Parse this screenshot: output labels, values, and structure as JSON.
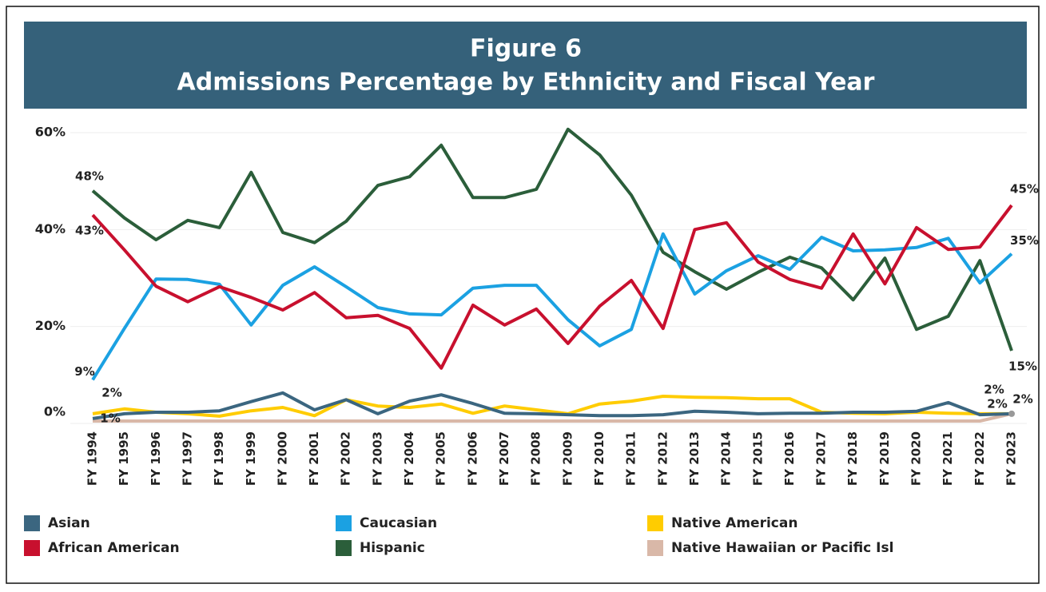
{
  "chart_data": {
    "type": "line",
    "title": "Figure 6",
    "subtitle": "Admissions Percentage by Ethnicity and Fiscal Year",
    "categories": [
      "FY 1994",
      "FY 1995",
      "FY 1996",
      "FY 1997",
      "FY 1998",
      "FY 1999",
      "FY 2000",
      "FY 2001",
      "FY 2002",
      "FY 2003",
      "FY 2004",
      "FY 2005",
      "FY 2006",
      "FY 2007",
      "FY 2008",
      "FY 2009",
      "FY 2010",
      "FY 2011",
      "FY 2012",
      "FY 2013",
      "FY 2014",
      "FY 2015",
      "FY 2016",
      "FY 2017",
      "FY 2018",
      "FY 2019",
      "FY 2020",
      "FY 2021",
      "FY 2022",
      "FY 2023"
    ],
    "ylim": [
      0,
      60
    ],
    "yticks": [
      {
        "value": 0,
        "label": "0%"
      },
      {
        "value": 20,
        "label": "20%"
      },
      {
        "value": 40,
        "label": "40%"
      },
      {
        "value": 60,
        "label": "60%"
      }
    ],
    "grid": true,
    "series": [
      {
        "name": "Asian",
        "color": "#3b6680",
        "values": [
          1,
          2,
          2.3,
          2.3,
          2.6,
          4.5,
          6.3,
          2.8,
          4.9,
          2,
          4.6,
          5.9,
          4.1,
          2.1,
          2,
          1.8,
          1.6,
          1.6,
          1.8,
          2.5,
          2.3,
          2,
          2.1,
          2.1,
          2.3,
          2.3,
          2.5,
          4.3,
          1.8,
          2
        ],
        "value_labels": [
          "1%",
          null,
          null,
          null,
          null,
          null,
          null,
          null,
          null,
          null,
          null,
          null,
          null,
          null,
          null,
          null,
          null,
          null,
          null,
          null,
          null,
          null,
          null,
          null,
          null,
          null,
          null,
          null,
          null,
          "2%"
        ]
      },
      {
        "name": "African American",
        "color": "#c8102e",
        "values": [
          43,
          35.8,
          28.3,
          25.1,
          28.2,
          26,
          23.4,
          27,
          21.8,
          22.3,
          19.6,
          11.4,
          24.4,
          20.3,
          23.6,
          16.5,
          24.2,
          29.5,
          19.6,
          40,
          41.4,
          33.3,
          29.7,
          27.9,
          39.1,
          28.8,
          40.4,
          35.9,
          36.4,
          45
        ],
        "value_labels": [
          "43%",
          null,
          null,
          null,
          null,
          null,
          null,
          null,
          null,
          null,
          null,
          null,
          null,
          null,
          null,
          null,
          null,
          null,
          null,
          null,
          null,
          null,
          null,
          null,
          null,
          null,
          null,
          null,
          null,
          "45%"
        ]
      },
      {
        "name": "Caucasian",
        "color": "#1ba1e2",
        "values": [
          9,
          19.6,
          29.8,
          29.7,
          28.7,
          20.3,
          28.5,
          32.3,
          28.2,
          23.9,
          22.6,
          22.4,
          27.9,
          28.5,
          28.5,
          21.4,
          16,
          19.4,
          39.1,
          26.7,
          31.5,
          34.6,
          31.8,
          38.4,
          35.6,
          35.8,
          36.3,
          38.2,
          29,
          35
        ],
        "value_labels": [
          "9%",
          null,
          null,
          null,
          null,
          null,
          null,
          null,
          null,
          null,
          null,
          null,
          null,
          null,
          null,
          null,
          null,
          null,
          null,
          null,
          null,
          null,
          null,
          null,
          null,
          null,
          null,
          null,
          null,
          "35%"
        ]
      },
      {
        "name": "Hispanic",
        "color": "#2b5e3a",
        "values": [
          48,
          42.4,
          37.9,
          41.9,
          40.4,
          51.8,
          39.4,
          37.3,
          41.7,
          49.1,
          50.9,
          57.4,
          46.6,
          46.6,
          48.3,
          60.7,
          55.4,
          47.1,
          35.3,
          31.3,
          27.7,
          31.2,
          34.3,
          32.1,
          25.5,
          34.1,
          19.4,
          22.1,
          33.6,
          15
        ],
        "value_labels": [
          "48%",
          null,
          null,
          null,
          null,
          null,
          null,
          null,
          null,
          null,
          null,
          null,
          null,
          null,
          null,
          null,
          null,
          null,
          null,
          null,
          null,
          null,
          null,
          null,
          null,
          null,
          null,
          null,
          null,
          "15%"
        ]
      },
      {
        "name": "Native American",
        "color": "#ffcc00",
        "values": [
          2,
          3,
          2.3,
          2,
          1.5,
          2.6,
          3.3,
          1.6,
          4.9,
          3.6,
          3.3,
          4,
          2.1,
          3.6,
          2.8,
          2,
          4,
          4.6,
          5.6,
          5.4,
          5.3,
          5.1,
          5.1,
          2.3,
          2.1,
          2,
          2.3,
          2.1,
          2,
          2
        ],
        "value_labels": [
          "2%",
          null,
          null,
          null,
          null,
          null,
          null,
          null,
          null,
          null,
          null,
          null,
          null,
          null,
          null,
          null,
          null,
          null,
          null,
          null,
          null,
          null,
          null,
          null,
          null,
          null,
          null,
          null,
          null,
          "2%"
        ]
      },
      {
        "name": "Native Hawaiian or Pacific Isl",
        "color": "#d9b8a8",
        "values": [
          0.5,
          0.5,
          0.5,
          0.5,
          0.5,
          0.5,
          0.5,
          0.5,
          0.5,
          0.5,
          0.5,
          0.5,
          0.5,
          0.5,
          0.5,
          0.5,
          0.5,
          0.5,
          0.5,
          0.5,
          0.5,
          0.5,
          0.5,
          0.5,
          0.5,
          0.5,
          0.5,
          0.5,
          0.5,
          2
        ],
        "value_labels": [
          null,
          null,
          null,
          null,
          null,
          null,
          null,
          null,
          null,
          null,
          null,
          null,
          null,
          null,
          null,
          null,
          null,
          null,
          null,
          null,
          null,
          null,
          null,
          null,
          null,
          null,
          null,
          null,
          null,
          "2%"
        ]
      }
    ]
  }
}
